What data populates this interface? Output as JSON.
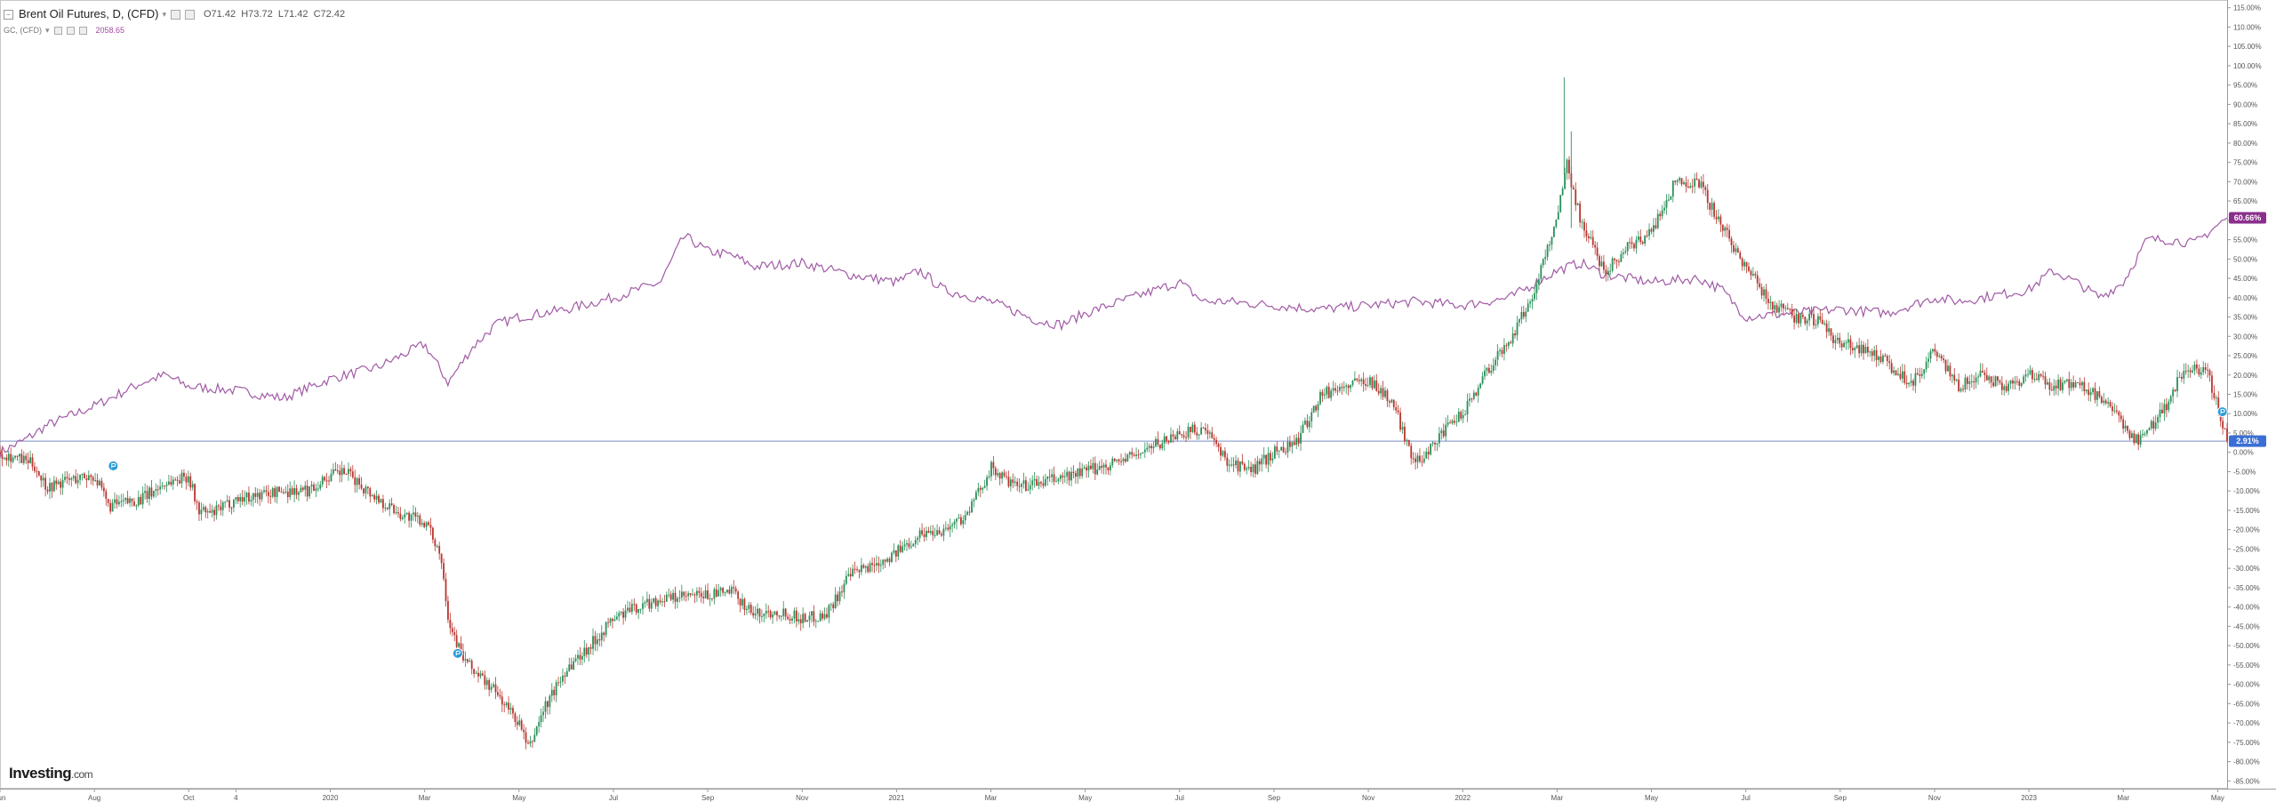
{
  "legend": {
    "series1_title": "Brent Oil Futures, D, (CFD)",
    "ohlc": {
      "o": "O71.42",
      "h": "H73.72",
      "l": "L71.42",
      "c": "C72.42"
    },
    "series2_title": "GC, (CFD)",
    "series2_value": "2058.65"
  },
  "badges": {
    "gold_pct": "60.66%",
    "oil_pct": "2.91%"
  },
  "watermark": {
    "brand": "Investing",
    "suffix": ".com"
  },
  "colors": {
    "up": "#2a8f58",
    "down": "#b8362f",
    "gold": "#a05aa5",
    "ref": "#7b8fc4",
    "event": "#2a9bd8"
  },
  "chart_data": {
    "type": "line",
    "title": "",
    "xlabel": "",
    "ylabel": "",
    "ylim": [
      -87,
      117
    ],
    "y_ticks": [
      "115.00%",
      "110.00%",
      "105.00%",
      "100.00%",
      "95.00%",
      "90.00%",
      "85.00%",
      "80.00%",
      "75.00%",
      "70.00%",
      "65.00%",
      "60.00%",
      "55.00%",
      "50.00%",
      "45.00%",
      "40.00%",
      "35.00%",
      "30.00%",
      "25.00%",
      "20.00%",
      "15.00%",
      "10.00%",
      "5.00%",
      "0.00%",
      "-5.00%",
      "-10.00%",
      "-15.00%",
      "-20.00%",
      "-25.00%",
      "-30.00%",
      "-35.00%",
      "-40.00%",
      "-45.00%",
      "-50.00%",
      "-55.00%",
      "-60.00%",
      "-65.00%",
      "-70.00%",
      "-75.00%",
      "-80.00%",
      "-85.00%"
    ],
    "x_ticks": [
      "Jun",
      "Aug",
      "Oct",
      "4",
      "2020",
      "Mar",
      "May",
      "Jul",
      "Sep",
      "Nov",
      "2021",
      "Mar",
      "May",
      "Jul",
      "Sep",
      "Nov",
      "2022",
      "Mar",
      "May",
      "Jul",
      "Sep",
      "Nov",
      "2023",
      "Mar",
      "May"
    ],
    "x_tick_months": [
      0,
      2,
      4,
      5,
      7,
      9,
      11,
      13,
      15,
      17,
      19,
      21,
      23,
      25,
      27,
      29,
      31,
      33,
      35,
      37,
      39,
      41,
      43,
      45,
      47
    ],
    "x_range_months": [
      0,
      47.2
    ],
    "reference_line": 2.91,
    "series": [
      {
        "name": "Brent Oil Futures, D, (CFD)",
        "style": "candlestick",
        "anchors": [
          [
            0,
            0
          ],
          [
            0.7,
            -3
          ],
          [
            1,
            -9
          ],
          [
            1.5,
            -7
          ],
          [
            2,
            -6
          ],
          [
            2.3,
            -14
          ],
          [
            3,
            -12
          ],
          [
            3.5,
            -8
          ],
          [
            4,
            -6
          ],
          [
            4.2,
            -15
          ],
          [
            4.5,
            -16
          ],
          [
            5,
            -12
          ],
          [
            6,
            -10
          ],
          [
            6.5,
            -10
          ],
          [
            7,
            -6
          ],
          [
            7.3,
            -5
          ],
          [
            7.6,
            -8
          ],
          [
            8,
            -12
          ],
          [
            8.5,
            -16
          ],
          [
            9,
            -18
          ],
          [
            9.3,
            -25
          ],
          [
            9.4,
            -31
          ],
          [
            9.5,
            -43
          ],
          [
            9.8,
            -53
          ],
          [
            10,
            -56
          ],
          [
            10.5,
            -62
          ],
          [
            11,
            -70
          ],
          [
            11.2,
            -77
          ],
          [
            11.5,
            -67
          ],
          [
            12,
            -56
          ],
          [
            12.5,
            -50
          ],
          [
            13,
            -43
          ],
          [
            13.5,
            -40
          ],
          [
            14,
            -38
          ],
          [
            15,
            -37
          ],
          [
            15.5,
            -36
          ],
          [
            16,
            -42
          ],
          [
            16.5,
            -41
          ],
          [
            17,
            -43
          ],
          [
            17.5,
            -42
          ],
          [
            18,
            -32
          ],
          [
            19,
            -26
          ],
          [
            19.5,
            -21
          ],
          [
            20,
            -20
          ],
          [
            20.5,
            -16
          ],
          [
            21,
            -4
          ],
          [
            21.5,
            -9
          ],
          [
            22,
            -8
          ],
          [
            23,
            -5
          ],
          [
            23.5,
            -3
          ],
          [
            24,
            -1
          ],
          [
            25,
            5
          ],
          [
            25.5,
            6
          ],
          [
            26,
            -2
          ],
          [
            26.5,
            -5
          ],
          [
            27,
            0
          ],
          [
            27.5,
            3
          ],
          [
            28,
            15
          ],
          [
            29,
            19
          ],
          [
            29.5,
            13
          ],
          [
            30,
            -3
          ],
          [
            30.5,
            4
          ],
          [
            31,
            10
          ],
          [
            31.5,
            21
          ],
          [
            32,
            29
          ],
          [
            32.5,
            41
          ],
          [
            33,
            61
          ],
          [
            33.2,
            75
          ],
          [
            33.5,
            60
          ],
          [
            34,
            47
          ],
          [
            34.5,
            53
          ],
          [
            35,
            57
          ],
          [
            35.5,
            70
          ],
          [
            36,
            70
          ],
          [
            36.5,
            58
          ],
          [
            37,
            48
          ],
          [
            37.5,
            39
          ],
          [
            38,
            35
          ],
          [
            38.5,
            34
          ],
          [
            39,
            28
          ],
          [
            39.5,
            27
          ],
          [
            40,
            23
          ],
          [
            40.5,
            18
          ],
          [
            41,
            26
          ],
          [
            41.5,
            17
          ],
          [
            42,
            20
          ],
          [
            42.5,
            17
          ],
          [
            43,
            20
          ],
          [
            43.5,
            17
          ],
          [
            44,
            18
          ],
          [
            44.5,
            14
          ],
          [
            45,
            7
          ],
          [
            45.3,
            3
          ],
          [
            45.6,
            7
          ],
          [
            46,
            14
          ],
          [
            46.3,
            22
          ],
          [
            46.8,
            20
          ],
          [
            47.2,
            3
          ]
        ]
      },
      {
        "name": "GC, (CFD)",
        "style": "line",
        "anchors": [
          [
            0,
            0
          ],
          [
            0.5,
            3
          ],
          [
            1,
            7
          ],
          [
            2,
            12
          ],
          [
            3,
            18
          ],
          [
            3.5,
            20
          ],
          [
            4,
            17
          ],
          [
            5,
            16
          ],
          [
            6,
            14
          ],
          [
            7,
            19
          ],
          [
            8,
            22
          ],
          [
            9,
            28
          ],
          [
            9.5,
            18
          ],
          [
            10,
            27
          ],
          [
            10.5,
            33
          ],
          [
            11,
            35
          ],
          [
            12,
            37
          ],
          [
            13,
            40
          ],
          [
            14,
            44
          ],
          [
            14.5,
            56
          ],
          [
            15,
            52
          ],
          [
            15.5,
            51
          ],
          [
            16,
            48
          ],
          [
            17,
            49
          ],
          [
            18,
            46
          ],
          [
            19,
            44
          ],
          [
            19.5,
            47
          ],
          [
            20,
            42
          ],
          [
            21,
            39
          ],
          [
            22,
            34
          ],
          [
            22.5,
            33
          ],
          [
            23,
            36
          ],
          [
            24,
            40
          ],
          [
            25,
            44
          ],
          [
            25.5,
            39
          ],
          [
            26,
            39
          ],
          [
            27,
            38
          ],
          [
            28,
            37
          ],
          [
            29,
            38
          ],
          [
            30,
            39
          ],
          [
            31,
            38
          ],
          [
            32,
            40
          ],
          [
            33,
            47
          ],
          [
            33.5,
            49
          ],
          [
            34,
            46
          ],
          [
            35,
            44
          ],
          [
            36,
            45
          ],
          [
            36.5,
            42
          ],
          [
            37,
            35
          ],
          [
            38,
            36
          ],
          [
            39,
            37
          ],
          [
            40,
            36
          ],
          [
            41,
            40
          ],
          [
            41.5,
            39
          ],
          [
            42,
            40
          ],
          [
            43,
            42
          ],
          [
            43.5,
            47
          ],
          [
            44,
            44
          ],
          [
            44.5,
            40
          ],
          [
            45,
            44
          ],
          [
            45.5,
            55
          ],
          [
            46,
            55
          ],
          [
            46.5,
            54
          ],
          [
            47.2,
            60.66
          ]
        ]
      }
    ],
    "markers": [
      {
        "x": 2.4,
        "y": -3.5
      },
      {
        "x": 9.7,
        "y": -52
      },
      {
        "x": 47.1,
        "y": 10.5
      }
    ]
  }
}
